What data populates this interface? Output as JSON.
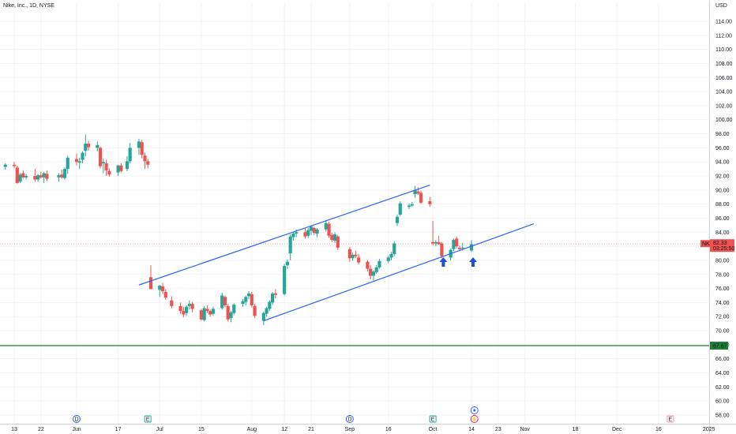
{
  "header": {
    "symbol_line": "Nike, Inc., 1D, NYSE"
  },
  "currency": "USD",
  "colors": {
    "up": "#26a69a",
    "down": "#ef5350",
    "channel": "#2962ff",
    "support": "#1e7e34",
    "arrow": "#1f4fd8",
    "price_line": "#f7a6a6",
    "grid": "#f3f3f3"
  },
  "chart_data": {
    "type": "candlestick",
    "ylim": [
      56.5,
      116.2
    ],
    "y_ticks": [
      "114.00",
      "112.00",
      "110.00",
      "108.00",
      "106.00",
      "104.00",
      "102.00",
      "100.00",
      "98.00",
      "96.00",
      "94.00",
      "92.00",
      "90.00",
      "88.00",
      "86.00",
      "84.00",
      "82.00",
      "80.00",
      "78.00",
      "76.00",
      "74.00",
      "72.00",
      "70.00",
      "68.00",
      "66.00",
      "64.00",
      "62.00",
      "60.00",
      "58.00"
    ],
    "x_ticks": [
      {
        "label": "13",
        "date": "2024-05-13"
      },
      {
        "label": "22",
        "date": "2024-05-22"
      },
      {
        "label": "Jun",
        "date": "2024-06-03"
      },
      {
        "label": "17",
        "date": "2024-06-17"
      },
      {
        "label": "Jul",
        "date": "2024-07-01"
      },
      {
        "label": "15",
        "date": "2024-07-15"
      },
      {
        "label": "Aug",
        "date": "2024-08-01"
      },
      {
        "label": "12",
        "date": "2024-08-12"
      },
      {
        "label": "21",
        "date": "2024-08-21"
      },
      {
        "label": "Sep",
        "date": "2024-09-03"
      },
      {
        "label": "16",
        "date": "2024-09-16"
      },
      {
        "label": "Oct",
        "date": "2024-10-01"
      },
      {
        "label": "14",
        "date": "2024-10-14"
      },
      {
        "label": "23",
        "date": "2024-10-23"
      },
      {
        "label": "Nov",
        "date": "2024-11-01"
      },
      {
        "label": "18",
        "date": "2024-11-18"
      },
      {
        "label": "Dec",
        "date": "2024-12-02"
      },
      {
        "label": "16",
        "date": "2024-12-16"
      },
      {
        "label": "2025",
        "date": "2025-01-02"
      }
    ],
    "candles": [
      [
        "2024-05-10",
        93.3,
        93.8,
        92.9,
        93.6
      ],
      [
        "2024-05-13",
        93.6,
        94.0,
        93.1,
        93.4
      ],
      [
        "2024-05-14",
        93.2,
        93.5,
        90.9,
        91.0
      ],
      [
        "2024-05-15",
        91.2,
        92.4,
        91.0,
        92.2
      ],
      [
        "2024-05-16",
        92.4,
        92.8,
        91.6,
        91.8
      ],
      [
        "2024-05-17",
        91.8,
        92.3,
        91.5,
        92.0
      ],
      [
        "2024-05-20",
        92.0,
        93.0,
        91.2,
        91.5
      ],
      [
        "2024-05-21",
        91.5,
        92.3,
        91.2,
        92.1
      ],
      [
        "2024-05-22",
        92.1,
        92.6,
        91.6,
        91.8
      ],
      [
        "2024-05-23",
        91.8,
        92.6,
        91.0,
        92.4
      ],
      [
        "2024-05-24",
        92.3,
        92.8,
        91.3,
        91.6
      ],
      [
        "2024-05-28",
        91.8,
        92.4,
        91.2,
        92.1
      ],
      [
        "2024-05-29",
        92.2,
        92.9,
        91.6,
        91.8
      ],
      [
        "2024-05-30",
        91.7,
        93.2,
        91.5,
        93.0
      ],
      [
        "2024-05-31",
        93.0,
        94.9,
        92.3,
        94.6
      ],
      [
        "2024-06-03",
        94.4,
        95.2,
        93.5,
        94.0
      ],
      [
        "2024-06-04",
        93.9,
        94.6,
        93.0,
        94.1
      ],
      [
        "2024-06-05",
        94.3,
        95.5,
        93.8,
        95.3
      ],
      [
        "2024-06-06",
        95.6,
        97.9,
        94.8,
        96.6
      ],
      [
        "2024-06-07",
        96.6,
        97.0,
        95.6,
        96.1
      ],
      [
        "2024-06-10",
        96.0,
        96.9,
        95.5,
        96.4
      ],
      [
        "2024-06-11",
        96.0,
        96.2,
        93.1,
        93.4
      ],
      [
        "2024-06-12",
        93.8,
        94.5,
        92.4,
        94.0
      ],
      [
        "2024-06-13",
        93.8,
        94.3,
        92.0,
        92.8
      ],
      [
        "2024-06-14",
        92.7,
        93.1,
        91.9,
        92.2
      ],
      [
        "2024-06-17",
        92.5,
        93.6,
        92.0,
        93.5
      ],
      [
        "2024-06-18",
        93.5,
        93.8,
        92.5,
        92.7
      ],
      [
        "2024-06-20",
        93.0,
        94.8,
        92.7,
        94.1
      ],
      [
        "2024-06-21",
        94.1,
        96.7,
        93.8,
        96.0
      ],
      [
        "2024-06-24",
        96.0,
        97.3,
        95.0,
        96.9
      ],
      [
        "2024-06-25",
        96.8,
        97.1,
        94.5,
        95.0
      ],
      [
        "2024-06-26",
        94.9,
        95.3,
        93.0,
        94.1
      ],
      [
        "2024-06-27",
        94.1,
        94.4,
        93.1,
        93.6
      ],
      [
        "2024-06-28",
        77.6,
        79.3,
        76.0,
        75.9
      ],
      [
        "2024-07-01",
        75.8,
        76.5,
        74.8,
        76.4
      ],
      [
        "2024-07-02",
        76.3,
        76.8,
        75.2,
        75.6
      ],
      [
        "2024-07-03",
        75.5,
        75.9,
        74.4,
        74.7
      ],
      [
        "2024-07-05",
        74.3,
        74.9,
        73.2,
        73.5
      ],
      [
        "2024-07-08",
        73.5,
        74.0,
        72.4,
        72.8
      ],
      [
        "2024-07-09",
        72.8,
        73.4,
        71.9,
        72.3
      ],
      [
        "2024-07-10",
        72.5,
        73.6,
        72.1,
        73.4
      ],
      [
        "2024-07-11",
        73.5,
        74.3,
        73.0,
        73.8
      ],
      [
        "2024-07-12",
        73.8,
        74.1,
        72.6,
        73.1
      ],
      [
        "2024-07-15",
        72.9,
        73.1,
        71.4,
        71.6
      ],
      [
        "2024-07-16",
        71.5,
        73.5,
        71.3,
        73.2
      ],
      [
        "2024-07-17",
        73.1,
        73.6,
        72.5,
        72.8
      ],
      [
        "2024-07-18",
        72.8,
        73.0,
        72.0,
        72.3
      ],
      [
        "2024-07-19",
        72.4,
        73.4,
        72.1,
        73.1
      ],
      [
        "2024-07-22",
        73.2,
        75.4,
        73.0,
        75.0
      ],
      [
        "2024-07-23",
        74.8,
        75.0,
        73.3,
        73.6
      ],
      [
        "2024-07-24",
        73.5,
        73.8,
        71.3,
        71.6
      ],
      [
        "2024-07-25",
        71.8,
        72.8,
        71.2,
        72.6
      ],
      [
        "2024-07-26",
        72.5,
        73.9,
        72.2,
        73.7
      ],
      [
        "2024-07-29",
        73.8,
        74.5,
        73.4,
        74.2
      ],
      [
        "2024-07-30",
        74.1,
        75.0,
        73.6,
        74.8
      ],
      [
        "2024-07-31",
        74.9,
        75.6,
        74.5,
        75.3
      ],
      [
        "2024-08-01",
        75.2,
        75.5,
        73.3,
        73.6
      ],
      [
        "2024-08-02",
        73.5,
        73.8,
        71.8,
        72.1
      ],
      [
        "2024-08-05",
        71.4,
        72.7,
        70.8,
        72.5
      ],
      [
        "2024-08-06",
        72.4,
        73.4,
        72.0,
        73.2
      ],
      [
        "2024-08-07",
        73.1,
        74.3,
        72.8,
        74.1
      ],
      [
        "2024-08-08",
        74.0,
        75.5,
        73.7,
        75.3
      ],
      [
        "2024-08-09",
        75.3,
        75.9,
        74.6,
        75.1
      ],
      [
        "2024-08-12",
        75.2,
        79.5,
        75.0,
        79.2
      ],
      [
        "2024-08-13",
        79.3,
        80.1,
        78.8,
        79.8
      ],
      [
        "2024-08-14",
        81.0,
        83.7,
        80.0,
        83.4
      ],
      [
        "2024-08-15",
        83.3,
        84.0,
        82.8,
        83.8
      ],
      [
        "2024-08-16",
        83.8,
        84.4,
        83.3,
        84.0
      ],
      [
        "2024-08-19",
        84.0,
        84.6,
        83.1,
        83.4
      ],
      [
        "2024-08-20",
        83.5,
        84.6,
        83.2,
        84.3
      ],
      [
        "2024-08-21",
        84.2,
        85.0,
        83.6,
        84.8
      ],
      [
        "2024-08-22",
        84.6,
        84.8,
        83.6,
        83.9
      ],
      [
        "2024-08-23",
        83.8,
        84.6,
        83.3,
        84.4
      ],
      [
        "2024-08-26",
        84.4,
        85.6,
        84.1,
        85.3
      ],
      [
        "2024-08-27",
        85.2,
        85.5,
        83.2,
        83.5
      ],
      [
        "2024-08-28",
        83.6,
        83.9,
        82.6,
        82.9
      ],
      [
        "2024-08-29",
        82.8,
        84.0,
        82.5,
        83.7
      ],
      [
        "2024-08-30",
        83.4,
        83.6,
        81.5,
        81.8
      ],
      [
        "2024-09-03",
        81.6,
        81.9,
        79.8,
        80.3
      ],
      [
        "2024-09-04",
        80.3,
        81.1,
        79.9,
        80.8
      ],
      [
        "2024-09-05",
        80.8,
        81.4,
        80.3,
        80.6
      ],
      [
        "2024-09-06",
        80.4,
        80.9,
        79.4,
        79.7
      ],
      [
        "2024-09-09",
        79.8,
        80.0,
        78.4,
        78.8
      ],
      [
        "2024-09-10",
        78.8,
        79.3,
        77.3,
        77.8
      ],
      [
        "2024-09-11",
        77.8,
        78.6,
        77.1,
        78.4
      ],
      [
        "2024-09-12",
        78.3,
        79.3,
        78.1,
        79.0
      ],
      [
        "2024-09-13",
        79.0,
        80.2,
        78.8,
        79.9
      ],
      [
        "2024-09-16",
        79.9,
        80.7,
        79.6,
        80.4
      ],
      [
        "2024-09-17",
        80.4,
        81.2,
        80.0,
        80.9
      ],
      [
        "2024-09-18",
        80.9,
        82.7,
        80.6,
        82.4
      ],
      [
        "2024-09-19",
        85.3,
        86.5,
        84.9,
        86.2
      ],
      [
        "2024-09-20",
        86.5,
        88.4,
        86.3,
        88.1
      ],
      [
        "2024-09-23",
        87.6,
        88.1,
        87.3,
        87.8
      ],
      [
        "2024-09-24",
        87.8,
        88.3,
        87.6,
        88.0
      ],
      [
        "2024-09-25",
        89.4,
        90.6,
        88.9,
        90.0
      ],
      [
        "2024-09-26",
        89.8,
        90.4,
        89.3,
        89.5
      ],
      [
        "2024-09-27",
        89.6,
        89.9,
        88.0,
        88.2
      ],
      [
        "2024-09-30",
        88.4,
        89.0,
        87.6,
        88.0
      ],
      [
        "2024-10-01",
        82.6,
        85.6,
        82.1,
        82.4
      ],
      [
        "2024-10-02",
        82.4,
        82.9,
        82.0,
        82.6
      ],
      [
        "2024-10-03",
        82.6,
        83.5,
        82.2,
        82.3
      ],
      [
        "2024-10-04",
        82.4,
        82.6,
        80.3,
        80.6
      ],
      [
        "2024-10-07",
        80.4,
        81.7,
        80.0,
        81.5
      ],
      [
        "2024-10-08",
        81.6,
        83.1,
        81.3,
        82.9
      ],
      [
        "2024-10-09",
        83.1,
        83.4,
        81.7,
        82.0
      ],
      [
        "2024-10-10",
        81.8,
        82.1,
        81.3,
        81.6
      ],
      [
        "2024-10-11",
        81.7,
        82.5,
        81.4,
        81.8
      ],
      [
        "2024-10-14",
        81.4,
        82.9,
        81.2,
        82.3
      ]
    ],
    "channel_lines": [
      {
        "name": "upper",
        "start": [
          "2024-06-24",
          76.5
        ],
        "end": [
          "2024-09-30",
          90.7
        ]
      },
      {
        "name": "lower",
        "start": [
          "2024-08-05",
          71.4
        ],
        "end": [
          "2024-11-04",
          85.2
        ]
      }
    ],
    "horizontal_line": 67.87,
    "price_line": 82.33,
    "last_price_label": {
      "symbol": "NKE",
      "price": "82.33",
      "countdown": "03:25:50"
    },
    "support_label": "67.87",
    "arrows": [
      "2024-10-04",
      "2024-10-14"
    ],
    "event_markers": [
      {
        "date": "2024-06-03",
        "letter": "D"
      },
      {
        "date": "2024-06-27",
        "letter": "E"
      },
      {
        "date": "2024-09-03",
        "letter": "D"
      },
      {
        "date": "2024-10-01",
        "letter": "E"
      },
      {
        "date": "2024-10-15",
        "letter": "",
        "kind": "target"
      },
      {
        "date": "2024-10-15",
        "letter": "⚡",
        "kind": "news"
      },
      {
        "date": "2024-12-20",
        "letter": "E",
        "kind": "future"
      }
    ]
  }
}
